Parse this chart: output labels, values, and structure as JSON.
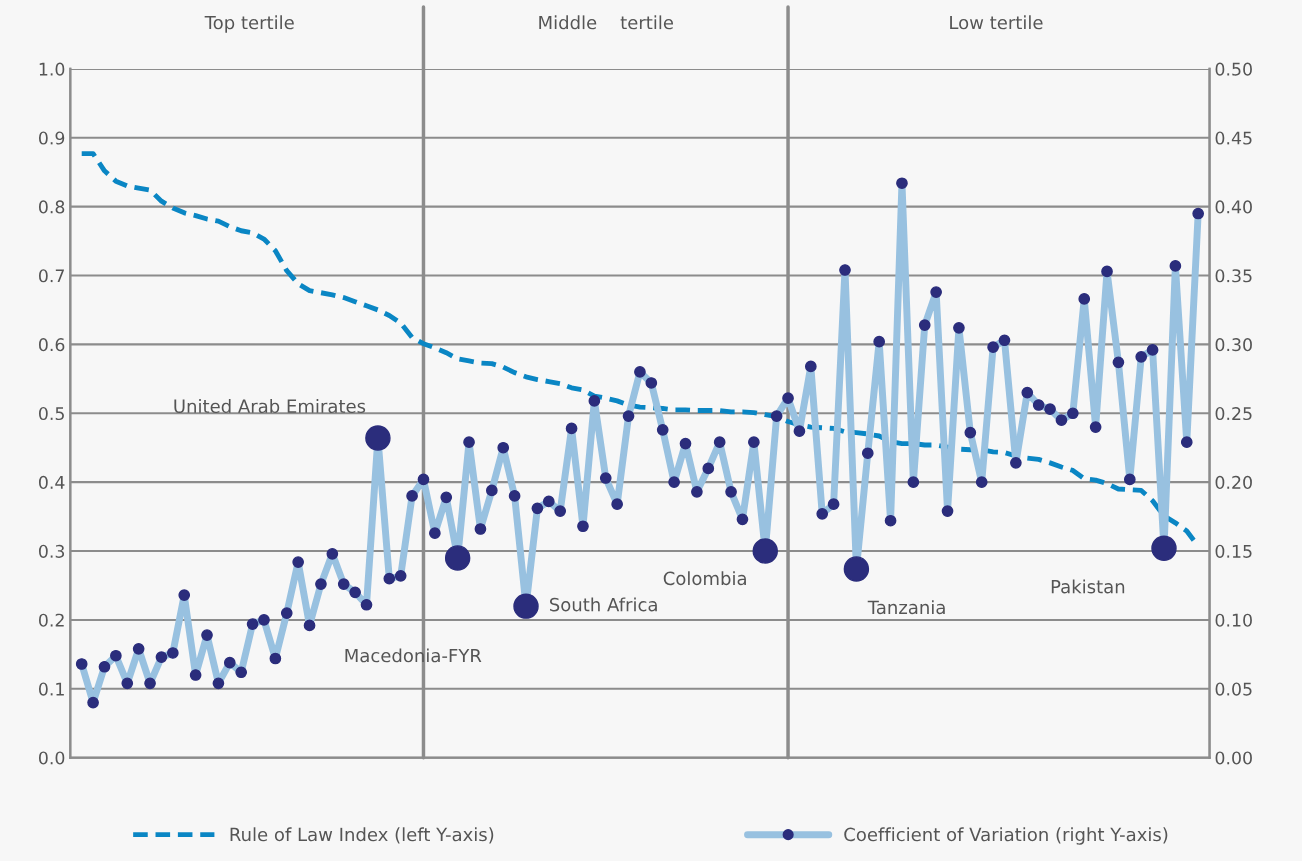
{
  "chart_data": {
    "type": "line",
    "categories": [
      null,
      null,
      null,
      null,
      null,
      null,
      null,
      null,
      null,
      null,
      null,
      null,
      null,
      null,
      null,
      null,
      null,
      null,
      null,
      null,
      null,
      null,
      null,
      null,
      null,
      null,
      null,
      null,
      null,
      null,
      null,
      null,
      null,
      null,
      null,
      null,
      null,
      null,
      null,
      null,
      null,
      null,
      null,
      null,
      null,
      null,
      null,
      null,
      null,
      null,
      null,
      null,
      null,
      null,
      null,
      null,
      null,
      null,
      null,
      null,
      null,
      null,
      null,
      null,
      null,
      null,
      null,
      null,
      null,
      null,
      null,
      null,
      null,
      null,
      null,
      null,
      null,
      null,
      null,
      null,
      null,
      null,
      null,
      null,
      null,
      null,
      null,
      null,
      null,
      null,
      null,
      null,
      null,
      null,
      null,
      null,
      null,
      null,
      null
    ],
    "series": [
      {
        "name": "Rule of Law Index (left Y-axis)",
        "line_style": "dashed",
        "marker": "none",
        "color": "#0a86c4",
        "values": [
          0.877,
          0.877,
          0.852,
          0.837,
          0.83,
          0.827,
          0.824,
          0.808,
          0.798,
          0.791,
          0.787,
          0.782,
          0.779,
          0.771,
          0.765,
          0.762,
          0.753,
          0.736,
          0.707,
          0.688,
          0.678,
          0.675,
          0.672,
          0.668,
          0.662,
          0.656,
          0.65,
          0.642,
          0.631,
          0.61,
          0.601,
          0.595,
          0.588,
          0.579,
          0.576,
          0.573,
          0.572,
          0.567,
          0.559,
          0.553,
          0.549,
          0.546,
          0.543,
          0.537,
          0.534,
          0.525,
          0.522,
          0.518,
          0.512,
          0.509,
          0.508,
          0.507,
          0.505,
          0.505,
          0.504,
          0.504,
          0.504,
          0.502,
          0.502,
          0.501,
          0.498,
          0.495,
          0.488,
          0.483,
          0.48,
          0.479,
          0.478,
          0.473,
          0.472,
          0.47,
          0.467,
          0.459,
          0.456,
          0.456,
          0.454,
          0.454,
          0.451,
          0.448,
          0.447,
          0.447,
          0.444,
          0.443,
          0.438,
          0.435,
          0.433,
          0.428,
          0.422,
          0.417,
          0.405,
          0.403,
          0.398,
          0.39,
          0.389,
          0.388,
          0.373,
          0.351,
          0.341,
          0.329,
          0.307
        ]
      },
      {
        "name": "Coefficient of Variation (right Y-axis)",
        "axis": "y2",
        "line_style": "solid",
        "marker": "circle",
        "color": "#98c1e0",
        "colors": [
          "#2b2d7c",
          "#2b2d7c",
          "#2b2d7c",
          "#2b2d7c",
          "#2b2d7c",
          "#2b2d7c",
          "#2b2d7c",
          "#2b2d7c",
          "#2b2d7c",
          "#2b2d7c",
          "#2b2d7c",
          "#2b2d7c",
          "#2b2d7c",
          "#2b2d7c",
          "#2b2d7c",
          "#2b2d7c",
          "#2b2d7c",
          "#2b2d7c",
          "#2b2d7c",
          "#2b2d7c",
          "#2b2d7c",
          "#2b2d7c",
          "#2b2d7c",
          "#2b2d7c",
          "#2b2d7c",
          "#2b2d7c",
          "#2b2d7c",
          "#2b2d7c",
          "#2b2d7c",
          "#2b2d7c",
          "#2b2d7c",
          "#2b2d7c",
          "#2b2d7c",
          "#2b2d7c",
          "#2b2d7c",
          "#2b2d7c",
          "#2b2d7c",
          "#2b2d7c",
          "#2b2d7c",
          "#2b2d7c",
          "#2b2d7c",
          "#2b2d7c",
          "#2b2d7c",
          "#2b2d7c",
          "#2b2d7c",
          "#2b2d7c",
          "#2b2d7c",
          "#2b2d7c",
          "#2b2d7c",
          "#2b2d7c",
          "#2b2d7c",
          "#2b2d7c",
          "#2b2d7c",
          "#2b2d7c",
          "#2b2d7c",
          "#2b2d7c",
          "#2b2d7c",
          "#2b2d7c",
          "#2b2d7c",
          "#2b2d7c",
          "#2b2d7c",
          "#2b2d7c",
          "#2b2d7c",
          "#2b2d7c",
          "#2b2d7c",
          "#2b2d7c",
          "#2b2d7c",
          "#2b2d7c",
          "#2b2d7c",
          "#2b2d7c",
          "#2b2d7c",
          "#2b2d7c",
          "#2b2d7c",
          "#2b2d7c",
          "#2b2d7c",
          "#2b2d7c",
          "#2b2d7c",
          "#2b2d7c",
          "#2b2d7c",
          "#2b2d7c",
          "#2b2d7c",
          "#2b2d7c",
          "#2b2d7c",
          "#2b2d7c",
          "#2b2d7c",
          "#2b2d7c",
          "#2b2d7c",
          "#2b2d7c",
          "#2b2d7c",
          "#2b2d7c",
          "#2b2d7c",
          "#2b2d7c",
          "#2b2d7c",
          "#2b2d7c",
          "#2b2d7c",
          "#2b2d7c",
          "#2b2d7c",
          "#2b2d7c",
          "#2b2d7c"
        ],
        "values": [
          0.068,
          0.04,
          0.066,
          0.074,
          0.054,
          0.079,
          0.054,
          0.073,
          0.076,
          0.118,
          0.06,
          0.089,
          0.054,
          0.069,
          0.062,
          0.097,
          0.1,
          0.072,
          0.105,
          0.142,
          0.096,
          0.126,
          0.148,
          0.126,
          0.12,
          0.111,
          0.232,
          0.13,
          0.132,
          0.19,
          0.202,
          0.163,
          0.189,
          0.145,
          0.229,
          0.166,
          0.194,
          0.225,
          0.19,
          0.11,
          0.181,
          0.186,
          0.179,
          0.239,
          0.168,
          0.259,
          0.203,
          0.184,
          0.248,
          0.28,
          0.272,
          0.238,
          0.2,
          0.228,
          0.193,
          0.21,
          0.229,
          0.193,
          0.173,
          0.229,
          0.15,
          0.248,
          0.261,
          0.237,
          0.284,
          0.177,
          0.184,
          0.354,
          0.137,
          0.221,
          0.302,
          0.172,
          0.417,
          0.2,
          0.314,
          0.338,
          0.179,
          0.312,
          0.236,
          0.2,
          0.298,
          0.303,
          0.214,
          0.265,
          0.256,
          0.253,
          0.245,
          0.25,
          0.333,
          0.24,
          0.353,
          0.287,
          0.202,
          0.291,
          0.296,
          0.152,
          0.357,
          0.229,
          0.395
        ]
      },
      {
        "type": "scatter",
        "axis": "y2",
        "marker": "circle",
        "color": "#2b2d7c",
        "values": [
          null,
          null,
          null,
          null,
          null,
          null,
          null,
          null,
          null,
          null,
          null,
          null,
          null,
          null,
          null,
          null,
          null,
          null,
          null,
          null,
          null,
          null,
          null,
          null,
          null,
          null,
          0.232,
          null,
          null,
          null,
          null,
          null,
          null,
          0.145,
          null,
          null,
          null,
          null,
          null,
          0.11,
          null,
          null,
          null,
          null,
          null,
          null,
          null,
          null,
          null,
          null,
          null,
          null,
          null,
          null,
          null,
          null,
          null,
          null,
          null,
          null,
          0.15,
          null,
          null,
          null,
          null,
          null,
          null,
          null,
          0.137,
          null,
          null,
          null,
          null,
          null,
          null,
          null,
          null,
          null,
          null,
          null,
          null,
          null,
          null,
          null,
          null,
          null,
          null,
          null,
          null,
          null,
          null,
          null,
          null,
          null,
          null,
          0.152,
          null,
          null,
          null
        ]
      }
    ],
    "annotations": [
      "Top tertile",
      "Middle    tertile",
      "Low tertile",
      "United Arab Emirates",
      "Macedonia-FYR",
      "South Africa",
      "Colombia",
      "Tanzania",
      "Pakistan"
    ],
    "ylim": [
      0,
      1.0
    ],
    "yticks": [
      {
        "value": 0,
        "label": "0.0"
      },
      {
        "value": 0.1,
        "label": "0.1"
      },
      {
        "value": 0.2,
        "label": "0.2"
      },
      {
        "value": 0.3,
        "label": "0.3"
      },
      {
        "value": 0.4,
        "label": "0.4"
      },
      {
        "value": 0.5,
        "label": "0.5"
      },
      {
        "value": 0.6,
        "label": "0.6"
      },
      {
        "value": 0.7,
        "label": "0.7"
      },
      {
        "value": 0.8,
        "label": "0.8"
      },
      {
        "value": 0.9,
        "label": "0.9"
      },
      {
        "value": 1.0,
        "label": "1.0"
      }
    ],
    "y2lim": [
      0,
      0.5
    ],
    "y2ticks": [
      {
        "value": 0,
        "label": "0.00"
      },
      {
        "value": 0.05,
        "label": "0.05"
      },
      {
        "value": 0.1,
        "label": "0.10"
      },
      {
        "value": 0.15,
        "label": "0.15"
      },
      {
        "value": 0.2,
        "label": "0.20"
      },
      {
        "value": 0.25,
        "label": "0.25"
      },
      {
        "value": 0.3,
        "label": "0.30"
      },
      {
        "value": 0.35,
        "label": "0.35"
      },
      {
        "value": 0.4,
        "label": "0.40"
      },
      {
        "value": 0.45,
        "label": "0.45"
      },
      {
        "value": 0.5,
        "label": "0.50"
      }
    ],
    "grid": "y",
    "legend": "bottom"
  }
}
